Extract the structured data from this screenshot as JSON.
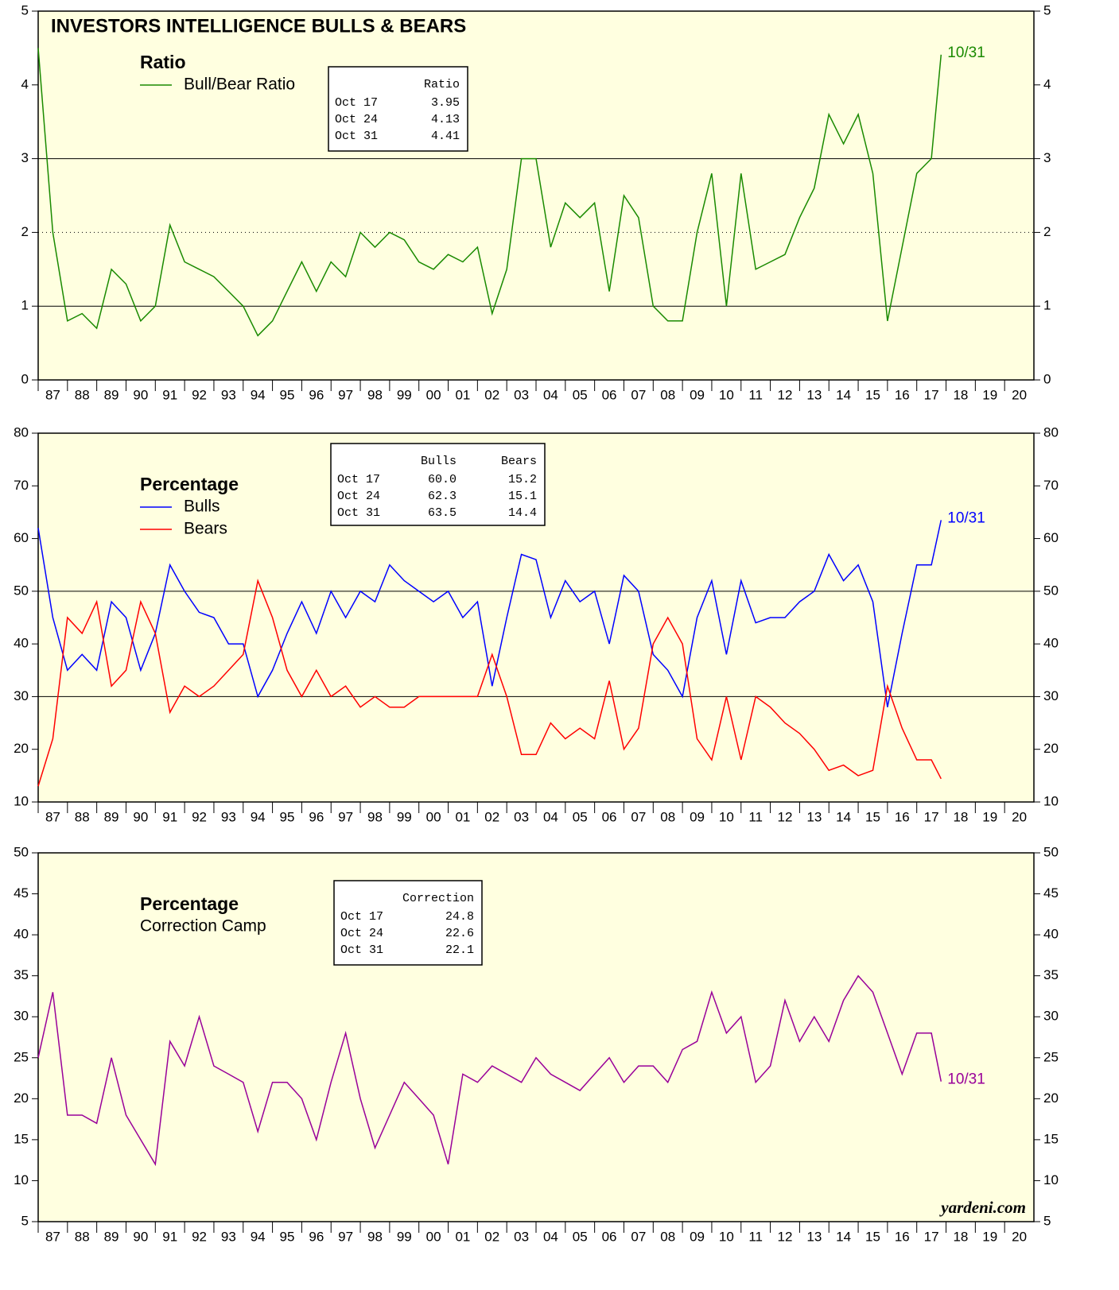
{
  "chart_data": [
    {
      "type": "line",
      "title": "INVESTORS INTELLIGENCE BULLS & BEARS",
      "legend_title": "Ratio",
      "legend_swatch": true,
      "x": [
        1987.0,
        1987.5,
        1988.0,
        1988.5,
        1989.0,
        1989.5,
        1990.0,
        1990.5,
        1991.0,
        1991.5,
        1992.0,
        1992.5,
        1993.0,
        1993.5,
        1994.0,
        1994.5,
        1995.0,
        1995.5,
        1996.0,
        1996.5,
        1997.0,
        1997.5,
        1998.0,
        1998.5,
        1999.0,
        1999.5,
        2000.0,
        2000.5,
        2001.0,
        2001.5,
        2002.0,
        2002.5,
        2003.0,
        2003.5,
        2004.0,
        2004.5,
        2005.0,
        2005.5,
        2006.0,
        2006.5,
        2007.0,
        2007.5,
        2008.0,
        2008.5,
        2009.0,
        2009.5,
        2010.0,
        2010.5,
        2011.0,
        2011.5,
        2012.0,
        2012.5,
        2013.0,
        2013.5,
        2014.0,
        2014.5,
        2015.0,
        2015.5,
        2016.0,
        2016.5,
        2017.0,
        2017.5,
        2017.83
      ],
      "series": [
        {
          "name": "Bull/Bear Ratio",
          "color": "#1a8a00",
          "values": [
            4.5,
            2.0,
            0.8,
            0.9,
            0.7,
            1.5,
            1.3,
            0.8,
            1.0,
            2.1,
            1.6,
            1.5,
            1.4,
            1.2,
            1.0,
            0.6,
            0.8,
            1.2,
            1.6,
            1.2,
            1.6,
            1.4,
            2.0,
            1.8,
            2.0,
            1.9,
            1.6,
            1.5,
            1.7,
            1.6,
            1.8,
            0.9,
            1.5,
            3.0,
            3.0,
            1.8,
            2.4,
            2.2,
            2.4,
            1.2,
            2.5,
            2.2,
            1.0,
            0.8,
            0.8,
            2.0,
            2.8,
            1.0,
            2.8,
            1.5,
            1.6,
            1.7,
            2.2,
            2.6,
            3.6,
            3.2,
            3.6,
            2.8,
            0.8,
            1.8,
            2.8,
            3.0,
            4.41
          ]
        }
      ],
      "end_label": "10/31",
      "table": {
        "header": [
          "Ratio"
        ],
        "rows": [
          [
            "Oct 17",
            "3.95"
          ],
          [
            "Oct 24",
            "4.13"
          ],
          [
            "Oct 31",
            "4.41"
          ]
        ]
      },
      "ylim": [
        0,
        5
      ],
      "yticks": [
        0,
        1,
        2,
        3,
        4,
        5
      ],
      "solid_lines": [
        1,
        3
      ],
      "dotted_lines": [
        2
      ],
      "xlim": [
        1987,
        2021
      ]
    },
    {
      "type": "line",
      "legend_title": "Percentage",
      "legend_swatch": true,
      "x": [
        1987.0,
        1987.5,
        1988.0,
        1988.5,
        1989.0,
        1989.5,
        1990.0,
        1990.5,
        1991.0,
        1991.5,
        1992.0,
        1992.5,
        1993.0,
        1993.5,
        1994.0,
        1994.5,
        1995.0,
        1995.5,
        1996.0,
        1996.5,
        1997.0,
        1997.5,
        1998.0,
        1998.5,
        1999.0,
        1999.5,
        2000.0,
        2000.5,
        2001.0,
        2001.5,
        2002.0,
        2002.5,
        2003.0,
        2003.5,
        2004.0,
        2004.5,
        2005.0,
        2005.5,
        2006.0,
        2006.5,
        2007.0,
        2007.5,
        2008.0,
        2008.5,
        2009.0,
        2009.5,
        2010.0,
        2010.5,
        2011.0,
        2011.5,
        2012.0,
        2012.5,
        2013.0,
        2013.5,
        2014.0,
        2014.5,
        2015.0,
        2015.5,
        2016.0,
        2016.5,
        2017.0,
        2017.5,
        2017.83
      ],
      "series": [
        {
          "name": "Bulls",
          "color": "#0000ff",
          "values": [
            62,
            45,
            35,
            38,
            35,
            48,
            45,
            35,
            42,
            55,
            50,
            46,
            45,
            40,
            40,
            30,
            35,
            42,
            48,
            42,
            50,
            45,
            50,
            48,
            55,
            52,
            50,
            48,
            50,
            45,
            48,
            32,
            45,
            57,
            56,
            45,
            52,
            48,
            50,
            40,
            53,
            50,
            38,
            35,
            30,
            45,
            52,
            38,
            52,
            44,
            45,
            45,
            48,
            50,
            57,
            52,
            55,
            48,
            28,
            42,
            55,
            55,
            63.5
          ]
        },
        {
          "name": "Bears",
          "color": "#ff0000",
          "values": [
            13,
            22,
            45,
            42,
            48,
            32,
            35,
            48,
            42,
            27,
            32,
            30,
            32,
            35,
            38,
            52,
            45,
            35,
            30,
            35,
            30,
            32,
            28,
            30,
            28,
            28,
            30,
            30,
            30,
            30,
            30,
            38,
            30,
            19,
            19,
            25,
            22,
            24,
            22,
            33,
            20,
            24,
            40,
            45,
            40,
            22,
            18,
            30,
            18,
            30,
            28,
            25,
            23,
            20,
            16,
            17,
            15,
            16,
            32,
            24,
            18,
            18,
            14.4
          ]
        }
      ],
      "end_label": "10/31",
      "table": {
        "header": [
          "Bulls",
          "Bears"
        ],
        "rows": [
          [
            "Oct 17",
            "60.0",
            "15.2"
          ],
          [
            "Oct 24",
            "62.3",
            "15.1"
          ],
          [
            "Oct 31",
            "63.5",
            "14.4"
          ]
        ]
      },
      "ylim": [
        10,
        80
      ],
      "yticks": [
        10,
        20,
        30,
        40,
        50,
        60,
        70,
        80
      ],
      "solid_lines": [
        30,
        50
      ],
      "dotted_lines": [],
      "xlim": [
        1987,
        2021
      ]
    },
    {
      "type": "line",
      "legend_title": "Percentage",
      "legend_swatch": false,
      "x": [
        1987.0,
        1987.5,
        1988.0,
        1988.5,
        1989.0,
        1989.5,
        1990.0,
        1990.5,
        1991.0,
        1991.5,
        1992.0,
        1992.5,
        1993.0,
        1993.5,
        1994.0,
        1994.5,
        1995.0,
        1995.5,
        1996.0,
        1996.5,
        1997.0,
        1997.5,
        1998.0,
        1998.5,
        1999.0,
        1999.5,
        2000.0,
        2000.5,
        2001.0,
        2001.5,
        2002.0,
        2002.5,
        2003.0,
        2003.5,
        2004.0,
        2004.5,
        2005.0,
        2005.5,
        2006.0,
        2006.5,
        2007.0,
        2007.5,
        2008.0,
        2008.5,
        2009.0,
        2009.5,
        2010.0,
        2010.5,
        2011.0,
        2011.5,
        2012.0,
        2012.5,
        2013.0,
        2013.5,
        2014.0,
        2014.5,
        2015.0,
        2015.5,
        2016.0,
        2016.5,
        2017.0,
        2017.5,
        2017.83
      ],
      "series": [
        {
          "name": "Correction Camp",
          "color": "#990099",
          "values": [
            25,
            33,
            18,
            18,
            17,
            25,
            18,
            15,
            12,
            27,
            24,
            30,
            24,
            23,
            22,
            16,
            22,
            22,
            20,
            15,
            22,
            28,
            20,
            14,
            18,
            22,
            20,
            18,
            12,
            23,
            22,
            24,
            23,
            22,
            25,
            23,
            22,
            21,
            23,
            25,
            22,
            24,
            24,
            22,
            26,
            27,
            33,
            28,
            30,
            22,
            24,
            32,
            27,
            30,
            27,
            32,
            35,
            33,
            28,
            23,
            28,
            28,
            22.1
          ]
        }
      ],
      "end_label": "10/31",
      "table": {
        "header": [
          "Correction"
        ],
        "rows": [
          [
            "Oct 17",
            "24.8"
          ],
          [
            "Oct 24",
            "22.6"
          ],
          [
            "Oct 31",
            "22.1"
          ]
        ]
      },
      "ylim": [
        5,
        50
      ],
      "yticks": [
        5,
        10,
        15,
        20,
        25,
        30,
        35,
        40,
        45,
        50
      ],
      "solid_lines": [],
      "dotted_lines": [],
      "xlim": [
        1987,
        2021
      ],
      "source": "yardeni.com"
    }
  ],
  "xticks": [
    {
      "value": 1987.5,
      "label": "87"
    },
    {
      "value": 1988.5,
      "label": "88"
    },
    {
      "value": 1989.5,
      "label": "89"
    },
    {
      "value": 1990.5,
      "label": "90"
    },
    {
      "value": 1991.5,
      "label": "91"
    },
    {
      "value": 1992.5,
      "label": "92"
    },
    {
      "value": 1993.5,
      "label": "93"
    },
    {
      "value": 1994.5,
      "label": "94"
    },
    {
      "value": 1995.5,
      "label": "95"
    },
    {
      "value": 1996.5,
      "label": "96"
    },
    {
      "value": 1997.5,
      "label": "97"
    },
    {
      "value": 1998.5,
      "label": "98"
    },
    {
      "value": 1999.5,
      "label": "99"
    },
    {
      "value": 2000.5,
      "label": "00"
    },
    {
      "value": 2001.5,
      "label": "01"
    },
    {
      "value": 2002.5,
      "label": "02"
    },
    {
      "value": 2003.5,
      "label": "03"
    },
    {
      "value": 2004.5,
      "label": "04"
    },
    {
      "value": 2005.5,
      "label": "05"
    },
    {
      "value": 2006.5,
      "label": "06"
    },
    {
      "value": 2007.5,
      "label": "07"
    },
    {
      "value": 2008.5,
      "label": "08"
    },
    {
      "value": 2009.5,
      "label": "09"
    },
    {
      "value": 2010.5,
      "label": "10"
    },
    {
      "value": 2011.5,
      "label": "11"
    },
    {
      "value": 2012.5,
      "label": "12"
    },
    {
      "value": 2013.5,
      "label": "13"
    },
    {
      "value": 2014.5,
      "label": "14"
    },
    {
      "value": 2015.5,
      "label": "15"
    },
    {
      "value": 2016.5,
      "label": "16"
    },
    {
      "value": 2017.5,
      "label": "17"
    },
    {
      "value": 2018.5,
      "label": "18"
    },
    {
      "value": 2019.5,
      "label": "19"
    },
    {
      "value": 2020.5,
      "label": "20"
    }
  ]
}
